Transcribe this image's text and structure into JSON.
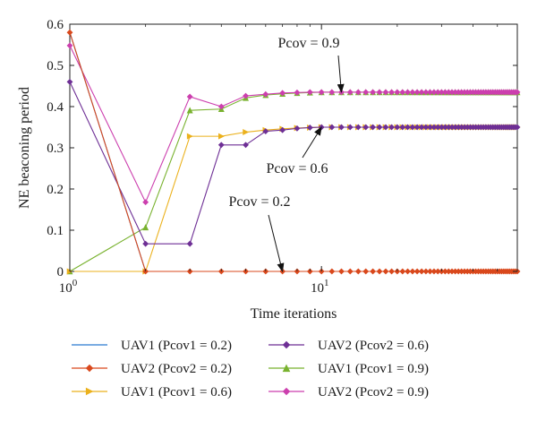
{
  "chart_data": {
    "type": "line",
    "xlabel": "Time iterations",
    "ylabel": "NE beaconing period",
    "xscale": "log",
    "xlim": [
      1,
      60
    ],
    "ylim": [
      0,
      0.6
    ],
    "x_ticks": [
      {
        "value": 1,
        "base": "10",
        "exp": "0"
      },
      {
        "value": 10,
        "base": "10",
        "exp": "1"
      }
    ],
    "y_ticks": [
      {
        "value": 0,
        "label": "0"
      },
      {
        "value": 0.1,
        "label": "0.1"
      },
      {
        "value": 0.2,
        "label": "0.2"
      },
      {
        "value": 0.3,
        "label": "0.3"
      },
      {
        "value": 0.4,
        "label": "0.4"
      },
      {
        "value": 0.5,
        "label": "0.5"
      },
      {
        "value": 0.6,
        "label": "0.6"
      }
    ],
    "grid": false,
    "legend_placement": "bottom",
    "series": [
      {
        "name": "UAV1 (Pcov1 = 0.2)",
        "color": "#2b7bd1",
        "marker": "none",
        "values": [
          0.58,
          0,
          0,
          0,
          0,
          0,
          0,
          0,
          0,
          0,
          0,
          0,
          0,
          0,
          0,
          0,
          0,
          0,
          0,
          0,
          0,
          0,
          0,
          0,
          0,
          0,
          0,
          0,
          0,
          0,
          0,
          0,
          0,
          0,
          0,
          0,
          0,
          0,
          0,
          0,
          0,
          0,
          0,
          0,
          0,
          0,
          0,
          0,
          0,
          0,
          0,
          0,
          0,
          0,
          0,
          0,
          0,
          0,
          0,
          0
        ]
      },
      {
        "name": "UAV2 (Pcov2 = 0.2)",
        "color": "#d9481c",
        "marker": "diamond",
        "values": [
          0.58,
          0,
          0,
          0,
          0,
          0,
          0,
          0,
          0,
          0,
          0,
          0,
          0,
          0,
          0,
          0,
          0,
          0,
          0,
          0,
          0,
          0,
          0,
          0,
          0,
          0,
          0,
          0,
          0,
          0,
          0,
          0,
          0,
          0,
          0,
          0,
          0,
          0,
          0,
          0,
          0,
          0,
          0,
          0,
          0,
          0,
          0,
          0,
          0,
          0,
          0,
          0,
          0,
          0,
          0,
          0,
          0,
          0,
          0,
          0
        ]
      },
      {
        "name": "UAV1 (Pcov1 = 0.6)",
        "color": "#ebb11c",
        "marker": "triangle-right",
        "values": [
          0,
          0,
          0.328,
          0.328,
          0.338,
          0.343,
          0.346,
          0.348,
          0.349,
          0.35,
          0.35,
          0.35,
          0.35,
          0.35,
          0.35,
          0.35,
          0.35,
          0.35,
          0.35,
          0.35,
          0.35,
          0.35,
          0.35,
          0.35,
          0.35,
          0.35,
          0.35,
          0.35,
          0.35,
          0.35,
          0.35,
          0.35,
          0.35,
          0.35,
          0.35,
          0.35,
          0.35,
          0.35,
          0.35,
          0.35,
          0.35,
          0.35,
          0.35,
          0.35,
          0.35,
          0.35,
          0.35,
          0.35,
          0.35,
          0.35,
          0.35,
          0.35,
          0.35,
          0.35,
          0.35,
          0.35,
          0.35,
          0.35,
          0.35,
          0.35
        ]
      },
      {
        "name": "UAV2 (Pcov2 = 0.6)",
        "color": "#6e2f95",
        "marker": "diamond",
        "values": [
          0.46,
          0.067,
          0.067,
          0.307,
          0.307,
          0.34,
          0.343,
          0.347,
          0.349,
          0.35,
          0.35,
          0.35,
          0.35,
          0.35,
          0.35,
          0.35,
          0.35,
          0.35,
          0.35,
          0.35,
          0.35,
          0.35,
          0.35,
          0.35,
          0.35,
          0.35,
          0.35,
          0.35,
          0.35,
          0.35,
          0.35,
          0.35,
          0.35,
          0.35,
          0.35,
          0.35,
          0.35,
          0.35,
          0.35,
          0.35,
          0.35,
          0.35,
          0.35,
          0.35,
          0.35,
          0.35,
          0.35,
          0.35,
          0.35,
          0.35,
          0.35,
          0.35,
          0.35,
          0.35,
          0.35,
          0.35,
          0.35,
          0.35,
          0.35,
          0.35
        ]
      },
      {
        "name": "UAV1 (Pcov1 = 0.9)",
        "color": "#79b22f",
        "marker": "triangle-up",
        "values": [
          0,
          0.107,
          0.391,
          0.394,
          0.421,
          0.428,
          0.431,
          0.433,
          0.434,
          0.435,
          0.435,
          0.435,
          0.435,
          0.435,
          0.435,
          0.435,
          0.435,
          0.435,
          0.435,
          0.435,
          0.435,
          0.435,
          0.435,
          0.435,
          0.435,
          0.435,
          0.435,
          0.435,
          0.435,
          0.435,
          0.435,
          0.435,
          0.435,
          0.435,
          0.435,
          0.435,
          0.435,
          0.435,
          0.435,
          0.435,
          0.435,
          0.435,
          0.435,
          0.435,
          0.435,
          0.435,
          0.435,
          0.435,
          0.435,
          0.435,
          0.435,
          0.435,
          0.435,
          0.435,
          0.435,
          0.435,
          0.435,
          0.435,
          0.435,
          0.435
        ]
      },
      {
        "name": "UAV2 (Pcov2 = 0.9)",
        "color": "#cc3fae",
        "marker": "diamond",
        "values": [
          0.548,
          0.168,
          0.424,
          0.4,
          0.426,
          0.43,
          0.433,
          0.434,
          0.435,
          0.435,
          0.435,
          0.435,
          0.435,
          0.435,
          0.435,
          0.435,
          0.435,
          0.435,
          0.435,
          0.435,
          0.435,
          0.435,
          0.435,
          0.435,
          0.435,
          0.435,
          0.435,
          0.435,
          0.435,
          0.435,
          0.435,
          0.435,
          0.435,
          0.435,
          0.435,
          0.435,
          0.435,
          0.435,
          0.435,
          0.435,
          0.435,
          0.435,
          0.435,
          0.435,
          0.435,
          0.435,
          0.435,
          0.435,
          0.435,
          0.435,
          0.435,
          0.435,
          0.435,
          0.435,
          0.435,
          0.435,
          0.435,
          0.435,
          0.435,
          0.435
        ]
      }
    ],
    "annotations": [
      {
        "text": "Pcov = 0.9",
        "target_x": 12,
        "target_y": 0.435
      },
      {
        "text": "Pcov = 0.6",
        "target_x": 10,
        "target_y": 0.35
      },
      {
        "text": "Pcov = 0.2",
        "target_x": 7,
        "target_y": 0
      }
    ]
  }
}
